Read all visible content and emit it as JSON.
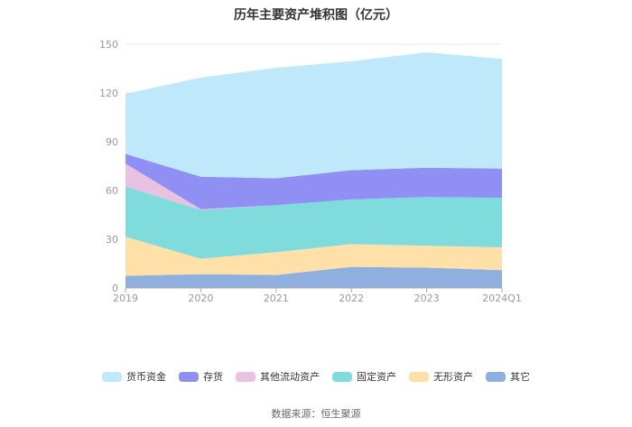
{
  "chart_data": {
    "type": "area",
    "stacked": true,
    "title": "历年主要资产堆积图（亿元）",
    "categories": [
      "2019",
      "2020",
      "2021",
      "2022",
      "2023",
      "2024Q1"
    ],
    "yticks": [
      "0",
      "30",
      "60",
      "90",
      "120",
      "150"
    ],
    "ylim": [
      0,
      150
    ],
    "grid": true,
    "legend_position": "bottom",
    "series": [
      {
        "name": "其它",
        "color": "#8fb0de",
        "values": [
          7.5,
          8.5,
          8,
          13,
          12.5,
          11
        ]
      },
      {
        "name": "无形资产",
        "color": "#ffe0a8",
        "values": [
          24,
          9.5,
          14,
          14,
          13.5,
          14
        ]
      },
      {
        "name": "固定资产",
        "color": "#80dcdc",
        "values": [
          31,
          30,
          29,
          27.5,
          30,
          30.5
        ]
      },
      {
        "name": "其他流动资产",
        "color": "#e8c2e0",
        "values": [
          14,
          0.5,
          0,
          0,
          0,
          0
        ]
      },
      {
        "name": "存货",
        "color": "#8f8ff4",
        "values": [
          6,
          20,
          16.5,
          18,
          18,
          18
        ]
      },
      {
        "name": "货币资金",
        "color": "#bfe8fb",
        "values": [
          37,
          61,
          68,
          67,
          71,
          67.5
        ]
      }
    ]
  },
  "source": "数据来源：恒生聚源"
}
